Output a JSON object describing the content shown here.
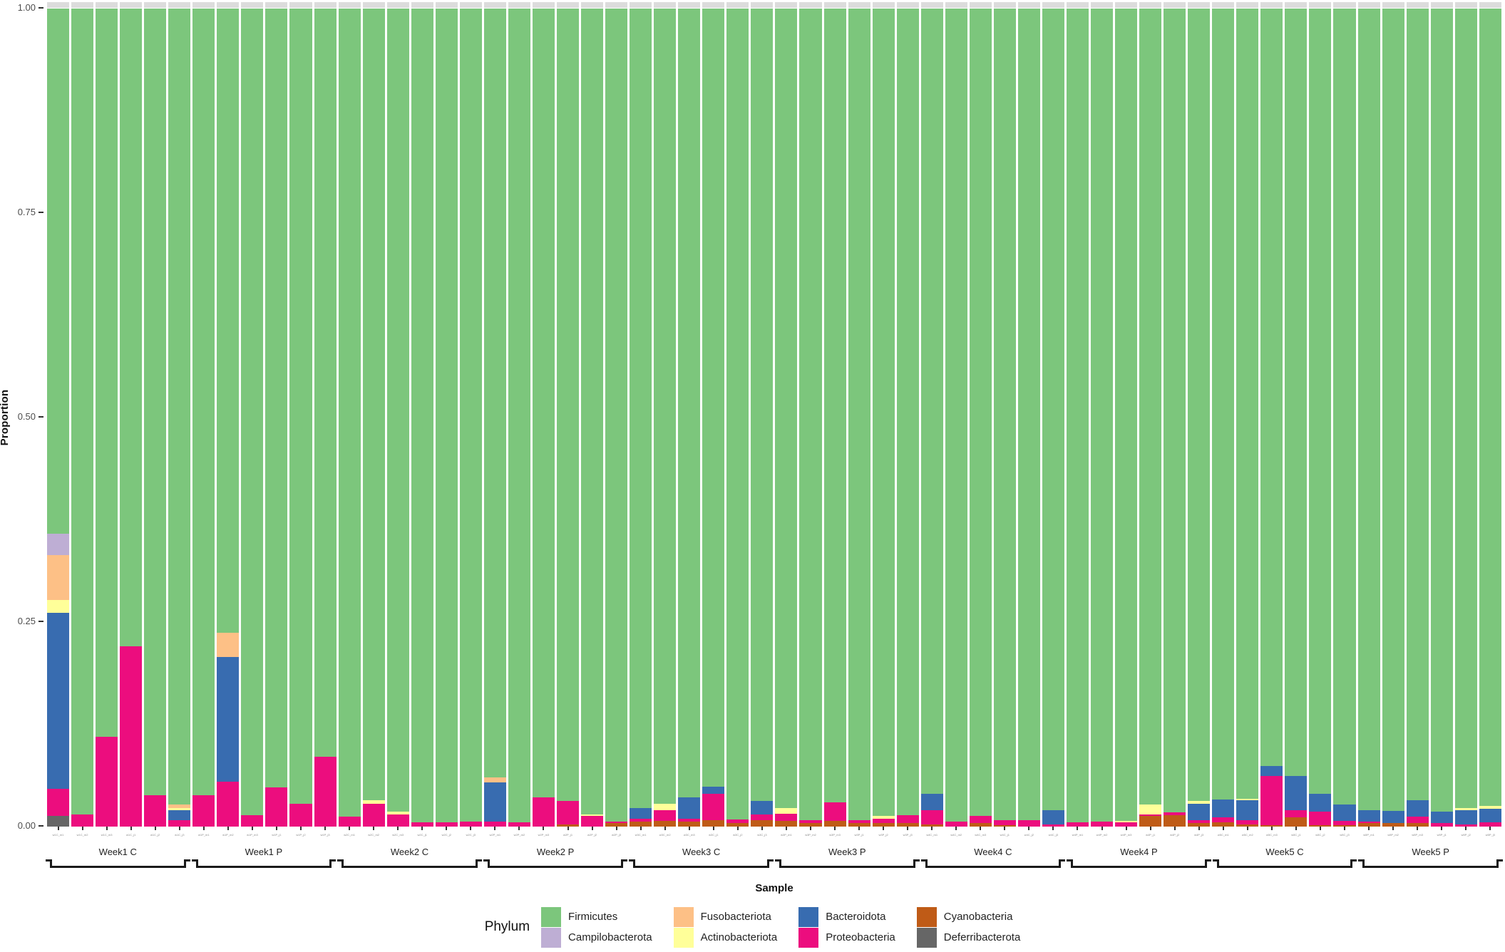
{
  "y_axis": {
    "label": "Proportion",
    "ticks": [
      "1.00",
      "0.75",
      "0.50",
      "0.25",
      "0.00"
    ]
  },
  "x_axis": {
    "label": "Sample"
  },
  "legend": {
    "title": "Phylum",
    "columns": [
      [
        "Firmicutes",
        "Campilobacterota"
      ],
      [
        "Fusobacteriota",
        "Actinobacteriota"
      ],
      [
        "Bacteroidota",
        "Proteobacteria"
      ],
      [
        "Cyanobacteria",
        "Deferribacterota"
      ]
    ]
  },
  "chart_data": {
    "type": "bar",
    "stacked": true,
    "orientation": "vertical",
    "title": "",
    "xlabel": "Sample",
    "ylabel": "Proportion",
    "ylim": [
      0,
      1
    ],
    "grid": false,
    "legend_position": "bottom",
    "legend_title": "Phylum",
    "stack_order_top_to_bottom": [
      "Firmicutes",
      "Campilobacterota",
      "Fusobacteriota",
      "Actinobacteriota",
      "Bacteroidota",
      "Proteobacteria",
      "Cyanobacteria",
      "Deferribacterota"
    ],
    "firmicutes_is_remainder_to_1": true,
    "series_colors": {
      "Firmicutes": "#7cc67c",
      "Campilobacterota": "#beaed4",
      "Fusobacteriota": "#fdc086",
      "Actinobacteriota": "#ffff99",
      "Bacteroidota": "#386cb0",
      "Proteobacteria": "#ec0d7e",
      "Cyanobacteria": "#bf5b17",
      "Deferribacterota": "#666666"
    },
    "panel_cap_color": "#dcdcdc",
    "groups": [
      {
        "label": "Week1 C",
        "samples": [
          {
            "label": "w1C_m1",
            "segments": {
              "Campilobacterota": 0.026,
              "Fusobacteriota": 0.055,
              "Actinobacteriota": 0.016,
              "Bacteroidota": 0.215,
              "Proteobacteria": 0.033,
              "Deferribacterota": 0.013
            }
          },
          {
            "label": "w1C_m2",
            "segments": {
              "Proteobacteria": 0.015
            }
          },
          {
            "label": "w1C_m3",
            "segments": {
              "Proteobacteria": 0.11
            }
          },
          {
            "label": "w1C_j1",
            "segments": {
              "Proteobacteria": 0.22
            }
          },
          {
            "label": "w1C_j2",
            "segments": {
              "Proteobacteria": 0.038
            }
          },
          {
            "label": "w1C_j3",
            "segments": {
              "Fusobacteriota": 0.004,
              "Actinobacteriota": 0.003,
              "Bacteroidota": 0.012,
              "Proteobacteria": 0.008
            }
          }
        ]
      },
      {
        "label": "Week1 P",
        "samples": [
          {
            "label": "w1P_m1",
            "segments": {
              "Proteobacteria": 0.038
            }
          },
          {
            "label": "w1P_m2",
            "segments": {
              "Fusobacteriota": 0.03,
              "Bacteroidota": 0.152,
              "Proteobacteria": 0.055
            }
          },
          {
            "label": "w1P_m3",
            "segments": {
              "Proteobacteria": 0.014
            }
          },
          {
            "label": "w1P_j1",
            "segments": {
              "Proteobacteria": 0.048
            }
          },
          {
            "label": "w1P_j2",
            "segments": {
              "Proteobacteria": 0.028
            }
          },
          {
            "label": "w1P_j3",
            "segments": {
              "Proteobacteria": 0.085
            }
          }
        ]
      },
      {
        "label": "Week2 C",
        "samples": [
          {
            "label": "w2C_m1",
            "segments": {
              "Proteobacteria": 0.012
            }
          },
          {
            "label": "w2C_m2",
            "segments": {
              "Actinobacteriota": 0.004,
              "Proteobacteria": 0.028
            }
          },
          {
            "label": "w2C_m3",
            "segments": {
              "Actinobacteriota": 0.003,
              "Proteobacteria": 0.015
            }
          },
          {
            "label": "w2C_j1",
            "segments": {
              "Proteobacteria": 0.005
            }
          },
          {
            "label": "w2C_j2",
            "segments": {
              "Proteobacteria": 0.005
            }
          },
          {
            "label": "w2C_j3",
            "segments": {
              "Proteobacteria": 0.006
            }
          }
        ]
      },
      {
        "label": "Week2 P",
        "samples": [
          {
            "label": "w2P_m1",
            "segments": {
              "Fusobacteriota": 0.006,
              "Bacteroidota": 0.048,
              "Proteobacteria": 0.006
            }
          },
          {
            "label": "w2P_m2",
            "segments": {
              "Proteobacteria": 0.005
            }
          },
          {
            "label": "w2P_m3",
            "segments": {
              "Proteobacteria": 0.036
            }
          },
          {
            "label": "w2P_j1",
            "segments": {
              "Proteobacteria": 0.028,
              "Cyanobacteria": 0.003
            }
          },
          {
            "label": "w2P_j2",
            "segments": {
              "Actinobacteriota": 0.002,
              "Proteobacteria": 0.013
            }
          },
          {
            "label": "w2P_j3",
            "segments": {
              "Proteobacteria": 0.002,
              "Cyanobacteria": 0.004
            }
          }
        ]
      },
      {
        "label": "Week3 C",
        "samples": [
          {
            "label": "w3C_m1",
            "segments": {
              "Bacteroidota": 0.013,
              "Proteobacteria": 0.004,
              "Cyanobacteria": 0.006
            }
          },
          {
            "label": "w3C_m2",
            "segments": {
              "Actinobacteriota": 0.008,
              "Proteobacteria": 0.013,
              "Cyanobacteria": 0.007
            }
          },
          {
            "label": "w3C_m3",
            "segments": {
              "Bacteroidota": 0.026,
              "Proteobacteria": 0.004,
              "Cyanobacteria": 0.006
            }
          },
          {
            "label": "w3C_j1",
            "segments": {
              "Bacteroidota": 0.009,
              "Proteobacteria": 0.032,
              "Cyanobacteria": 0.008
            }
          },
          {
            "label": "w3C_j2",
            "segments": {
              "Proteobacteria": 0.005,
              "Cyanobacteria": 0.004
            }
          },
          {
            "label": "w3C_j3",
            "segments": {
              "Bacteroidota": 0.016,
              "Proteobacteria": 0.007,
              "Cyanobacteria": 0.008
            }
          }
        ]
      },
      {
        "label": "Week3 P",
        "samples": [
          {
            "label": "w3P_m1",
            "segments": {
              "Actinobacteriota": 0.007,
              "Proteobacteria": 0.009,
              "Cyanobacteria": 0.007
            }
          },
          {
            "label": "w3P_m2",
            "segments": {
              "Proteobacteria": 0.004,
              "Cyanobacteria": 0.004
            }
          },
          {
            "label": "w3P_m3",
            "segments": {
              "Proteobacteria": 0.023,
              "Cyanobacteria": 0.007
            }
          },
          {
            "label": "w3P_j1",
            "segments": {
              "Proteobacteria": 0.004,
              "Cyanobacteria": 0.004
            }
          },
          {
            "label": "w3P_j2",
            "segments": {
              "Actinobacteriota": 0.003,
              "Proteobacteria": 0.006,
              "Cyanobacteria": 0.004
            }
          },
          {
            "label": "w3P_j3",
            "segments": {
              "Proteobacteria": 0.01,
              "Cyanobacteria": 0.004
            }
          }
        ]
      },
      {
        "label": "Week4 C",
        "samples": [
          {
            "label": "w4C_m1",
            "segments": {
              "Bacteroidota": 0.02,
              "Proteobacteria": 0.017,
              "Cyanobacteria": 0.003
            }
          },
          {
            "label": "w4C_m2",
            "segments": {
              "Proteobacteria": 0.006
            }
          },
          {
            "label": "w4C_m3",
            "segments": {
              "Proteobacteria": 0.009,
              "Cyanobacteria": 0.004
            }
          },
          {
            "label": "w4C_j1",
            "segments": {
              "Proteobacteria": 0.006,
              "Cyanobacteria": 0.002
            }
          },
          {
            "label": "w4C_j2",
            "segments": {
              "Proteobacteria": 0.008
            }
          },
          {
            "label": "w4C_j3",
            "segments": {
              "Bacteroidota": 0.017,
              "Proteobacteria": 0.003
            }
          }
        ]
      },
      {
        "label": "Week4 P",
        "samples": [
          {
            "label": "w4P_m1",
            "segments": {
              "Proteobacteria": 0.005
            }
          },
          {
            "label": "w4P_m2",
            "segments": {
              "Proteobacteria": 0.006
            }
          },
          {
            "label": "w4P_m3",
            "segments": {
              "Actinobacteriota": 0.002,
              "Proteobacteria": 0.005
            }
          },
          {
            "label": "w4P_j1",
            "segments": {
              "Actinobacteriota": 0.012,
              "Proteobacteria": 0.002,
              "Cyanobacteria": 0.013
            }
          },
          {
            "label": "w4P_j2",
            "segments": {
              "Proteobacteria": 0.003,
              "Cyanobacteria": 0.014
            }
          },
          {
            "label": "w4P_j3",
            "segments": {
              "Actinobacteriota": 0.003,
              "Bacteroidota": 0.02,
              "Proteobacteria": 0.004,
              "Cyanobacteria": 0.004
            }
          }
        ]
      },
      {
        "label": "Week5 C",
        "samples": [
          {
            "label": "w5C_m1",
            "segments": {
              "Bacteroidota": 0.022,
              "Proteobacteria": 0.006,
              "Cyanobacteria": 0.005
            }
          },
          {
            "label": "w5C_m2",
            "segments": {
              "Actinobacteriota": 0.002,
              "Bacteroidota": 0.024,
              "Proteobacteria": 0.005,
              "Cyanobacteria": 0.003
            }
          },
          {
            "label": "w5C_m3",
            "segments": {
              "Bacteroidota": 0.012,
              "Proteobacteria": 0.06,
              "Cyanobacteria": 0.002
            }
          },
          {
            "label": "w5C_j1",
            "segments": {
              "Bacteroidota": 0.042,
              "Proteobacteria": 0.009,
              "Cyanobacteria": 0.011
            }
          },
          {
            "label": "w5C_j2",
            "segments": {
              "Bacteroidota": 0.022,
              "Proteobacteria": 0.016,
              "Cyanobacteria": 0.002
            }
          },
          {
            "label": "w5C_j3",
            "segments": {
              "Bacteroidota": 0.02,
              "Proteobacteria": 0.005,
              "Cyanobacteria": 0.002
            }
          }
        ]
      },
      {
        "label": "Week5 P",
        "samples": [
          {
            "label": "w5P_m1",
            "segments": {
              "Bacteroidota": 0.014,
              "Proteobacteria": 0.002,
              "Cyanobacteria": 0.004
            }
          },
          {
            "label": "w5P_m2",
            "segments": {
              "Bacteroidota": 0.015,
              "Cyanobacteria": 0.004
            }
          },
          {
            "label": "w5P_m3",
            "segments": {
              "Bacteroidota": 0.02,
              "Proteobacteria": 0.008,
              "Cyanobacteria": 0.004
            }
          },
          {
            "label": "w5P_j1",
            "segments": {
              "Bacteroidota": 0.014,
              "Proteobacteria": 0.004
            }
          },
          {
            "label": "w5P_j2",
            "segments": {
              "Actinobacteriota": 0.003,
              "Bacteroidota": 0.017,
              "Proteobacteria": 0.003
            }
          },
          {
            "label": "w5P_j3",
            "segments": {
              "Actinobacteriota": 0.003,
              "Bacteroidota": 0.017,
              "Proteobacteria": 0.005
            }
          }
        ]
      }
    ]
  }
}
